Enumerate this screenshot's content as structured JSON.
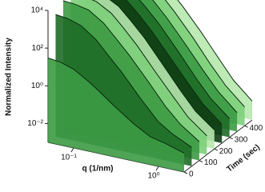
{
  "chart_data": {
    "type": "waterfall",
    "xlabel": "q (1/nm)",
    "ylabel": "Time (sec)",
    "zlabel": "Normalized Intensity",
    "q": [
      0.05,
      0.07,
      0.1,
      0.15,
      0.2,
      0.3,
      0.5,
      0.8,
      1.2,
      2
    ],
    "time": [
      0,
      50,
      100,
      150,
      200,
      250,
      300,
      350,
      400,
      450
    ],
    "series": [
      {
        "values": [
          30,
          25,
          15,
          5,
          2,
          0.5,
          0.1,
          0.03,
          0.02,
          0.01
        ]
      },
      {
        "values": [
          3000,
          2500,
          1500,
          400,
          100,
          15,
          1,
          0.1,
          0.03,
          0.01
        ]
      },
      {
        "values": [
          8000,
          7000,
          5000,
          1500,
          400,
          60,
          4,
          0.3,
          0.05,
          0.01
        ]
      },
      {
        "values": [
          10000,
          9500,
          7000,
          2500,
          700,
          100,
          6,
          0.5,
          0.06,
          0.01
        ]
      },
      {
        "values": [
          10000,
          9500,
          7500,
          2800,
          800,
          120,
          7,
          0.5,
          0.06,
          0.01
        ]
      },
      {
        "values": [
          10000,
          9500,
          7500,
          3000,
          900,
          130,
          8,
          0.6,
          0.07,
          0.01
        ]
      },
      {
        "values": [
          10000,
          9800,
          8000,
          3200,
          1000,
          150,
          9,
          0.6,
          0.07,
          0.01
        ]
      },
      {
        "values": [
          10000,
          9800,
          8000,
          3400,
          1100,
          160,
          10,
          0.7,
          0.08,
          0.01
        ]
      },
      {
        "values": [
          10000,
          9800,
          8200,
          3500,
          1200,
          170,
          11,
          0.7,
          0.08,
          0.01
        ]
      },
      {
        "values": [
          10000,
          9800,
          8200,
          3600,
          1200,
          180,
          12,
          0.8,
          0.08,
          0.01
        ]
      }
    ],
    "color": "#3c9a44",
    "edge_color": "#0b2a0f",
    "xlog": true,
    "zlog": true,
    "xlim": [
      0.05,
      2
    ],
    "ylim": [
      0,
      450
    ],
    "zlim": [
      0.001,
      10000
    ],
    "xticks": [
      {
        "value": 0.1,
        "label": "10⁻¹"
      },
      {
        "value": 1,
        "label": "10⁰"
      }
    ],
    "yticks": [
      0,
      100,
      200,
      300,
      400
    ],
    "zticks": [
      {
        "value": 0.01,
        "label": "10⁻²"
      },
      {
        "value": 1,
        "label": "10⁰"
      },
      {
        "value": 100,
        "label": "10²"
      },
      {
        "value": 10000,
        "label": "10⁴"
      }
    ]
  }
}
